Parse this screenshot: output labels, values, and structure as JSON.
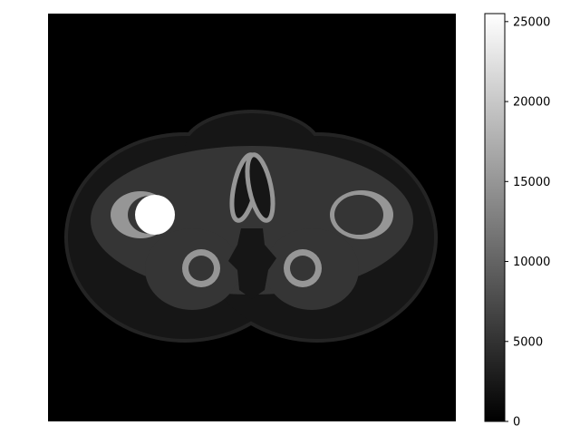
{
  "chart_data": {
    "type": "heatmap",
    "title": "",
    "xlabel": "",
    "ylabel": "",
    "axes_visible": false,
    "image_description_semantic": "phantom",
    "colormap": "gray",
    "colorbar": {
      "position": "right",
      "vmin": 0,
      "vmax": 25500,
      "ticks": [
        0,
        5000,
        10000,
        15000,
        20000,
        25000
      ],
      "tick_labels": [
        "0",
        "5000",
        "10000",
        "15000",
        "20000",
        "25000"
      ]
    },
    "regions": [
      {
        "name": "background",
        "value": 0
      },
      {
        "name": "skin-outline",
        "value": 3600
      },
      {
        "name": "outer-body",
        "value": 2200
      },
      {
        "name": "inner-body",
        "value": 5300
      },
      {
        "name": "central-dark-region",
        "value": 2200
      },
      {
        "name": "bone-rings",
        "value": 15000
      },
      {
        "name": "bone-marrow",
        "value": 5300
      },
      {
        "name": "bright-insert",
        "value": 25500
      }
    ]
  }
}
